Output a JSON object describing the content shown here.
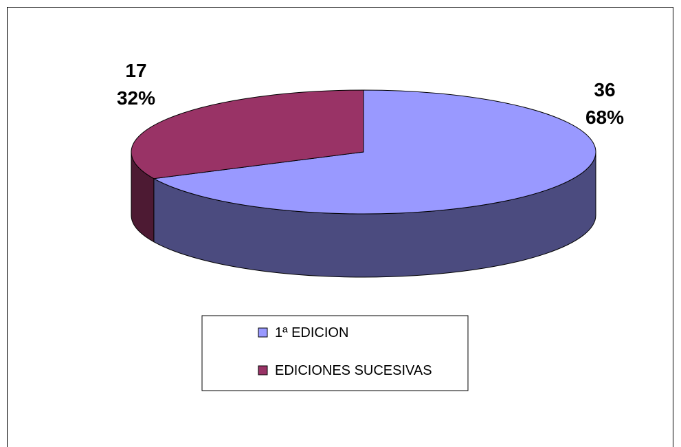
{
  "chart_data": {
    "type": "pie",
    "three_d": true,
    "title": "",
    "slices": [
      {
        "name": "1ª EDICION",
        "value": 36,
        "percent": "68%",
        "color": "#9999FF",
        "side_color": "#4B4B7F"
      },
      {
        "name": "EDICIONES SUCESIVAS",
        "value": 17,
        "percent": "32%",
        "color": "#993366",
        "side_color": "#4D1A33"
      }
    ],
    "legend_position": "bottom"
  }
}
